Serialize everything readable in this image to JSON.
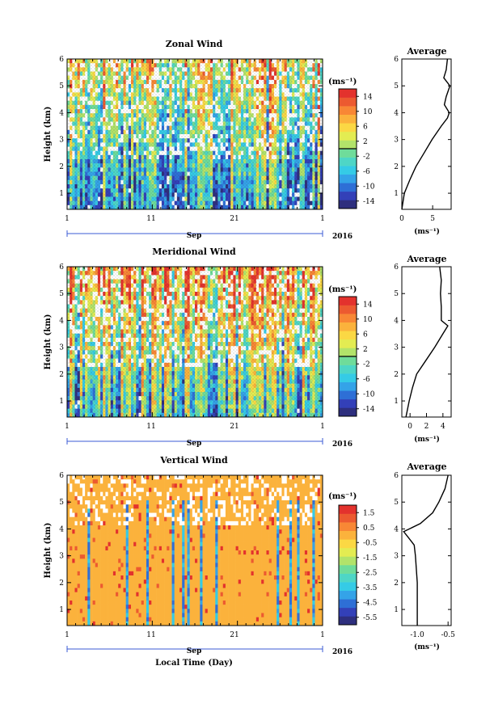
{
  "chart_data": [
    {
      "type": "heatmap",
      "title": "Zonal Wind",
      "ylabel": "Height (km)",
      "yticks": [
        "1",
        "2",
        "3",
        "4",
        "5",
        "6"
      ],
      "ylim": [
        0.4,
        6
      ],
      "xticks": [
        "1",
        "11",
        "21",
        "1"
      ],
      "xlabel_month": "Sep",
      "year": "2016",
      "colorbar": {
        "unit": "(ms⁻¹)",
        "labels": [
          "14",
          "10",
          "6",
          "2",
          "-2",
          "-6",
          "-10",
          "-14"
        ],
        "range": [
          -16,
          16
        ],
        "zero_line_at": 0
      },
      "profile": {
        "title": "Average",
        "xticks": [
          "0",
          "5"
        ],
        "xlim": [
          0,
          8
        ],
        "xlabel": "(ms⁻¹)",
        "heights": [
          0.4,
          1.0,
          1.5,
          2.0,
          2.5,
          3.0,
          3.5,
          3.8,
          4.0,
          4.3,
          4.6,
          5.0,
          5.3,
          5.6,
          6.0
        ],
        "values": [
          0.0,
          0.4,
          1.3,
          2.3,
          3.6,
          4.9,
          6.4,
          7.4,
          7.7,
          6.9,
          7.2,
          7.8,
          6.8,
          7.2,
          7.4
        ]
      }
    },
    {
      "type": "heatmap",
      "title": "Meridional Wind",
      "ylabel": "Height (km)",
      "yticks": [
        "1",
        "2",
        "3",
        "4",
        "5",
        "6"
      ],
      "ylim": [
        0.4,
        6
      ],
      "xticks": [
        "1",
        "11",
        "21",
        "1"
      ],
      "xlabel_month": "Sep",
      "year": "2016",
      "colorbar": {
        "unit": "(ms⁻¹)",
        "labels": [
          "14",
          "10",
          "6",
          "2",
          "-2",
          "-6",
          "-10",
          "-14"
        ],
        "range": [
          -16,
          16
        ],
        "zero_line_at": 0
      },
      "profile": {
        "title": "Average",
        "xticks": [
          "0",
          "2",
          "4"
        ],
        "xlim": [
          -1,
          5
        ],
        "xlabel": "(ms⁻¹)",
        "heights": [
          0.4,
          1.0,
          1.5,
          2.0,
          2.5,
          3.0,
          3.5,
          3.8,
          4.0,
          4.5,
          5.0,
          5.5,
          6.0
        ],
        "values": [
          -0.5,
          -0.1,
          0.3,
          0.8,
          1.9,
          3.0,
          4.0,
          4.6,
          3.8,
          3.8,
          3.7,
          3.8,
          3.6
        ]
      }
    },
    {
      "type": "heatmap",
      "title": "Vertical Wind",
      "ylabel": "Height (km)",
      "yticks": [
        "1",
        "2",
        "3",
        "4",
        "5",
        "6"
      ],
      "ylim": [
        0.4,
        6
      ],
      "xticks": [
        "1",
        "11",
        "21",
        "1"
      ],
      "xlabel_month": "Sep",
      "year": "2016",
      "xlabel": "Local Time (Day)",
      "colorbar": {
        "unit": "(ms⁻¹)",
        "labels": [
          "1.5",
          "0.5",
          "-0.5",
          "-1.5",
          "-2.5",
          "-3.5",
          "-4.5",
          "-5.5"
        ],
        "range": [
          -6,
          2
        ]
      },
      "profile": {
        "title": "Average",
        "xticks": [
          "-1.0",
          "-0.5"
        ],
        "xlim": [
          -1.25,
          -0.45
        ],
        "xlabel": "(ms⁻¹)",
        "heights": [
          0.4,
          1.0,
          2.0,
          3.0,
          3.4,
          3.7,
          3.9,
          4.2,
          4.6,
          5.0,
          5.5,
          6.0
        ],
        "values": [
          -1.0,
          -1.0,
          -1.0,
          -1.03,
          -1.05,
          -1.15,
          -1.22,
          -0.95,
          -0.75,
          -0.65,
          -0.55,
          -0.5
        ]
      }
    }
  ],
  "colors": {
    "scale": [
      "#2e2f7e",
      "#3340b8",
      "#2e6fd6",
      "#34a3e8",
      "#35cbe6",
      "#4ed6c6",
      "#6fdc9a",
      "#b2e36a",
      "#e3ec52",
      "#fbd844",
      "#fbb23c",
      "#f88735",
      "#ec5a30",
      "#e3322d"
    ]
  }
}
